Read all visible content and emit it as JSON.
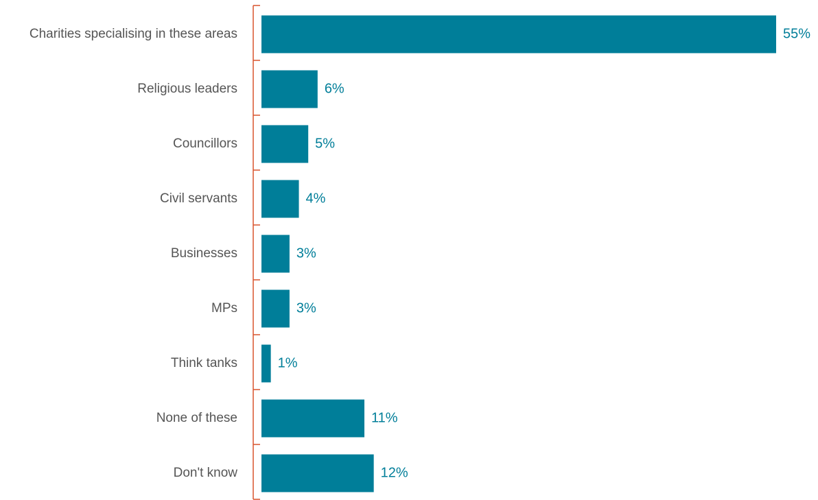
{
  "chart_data": {
    "type": "bar",
    "orientation": "horizontal",
    "categories": [
      "Charities specialising in these areas",
      "Religious leaders",
      "Councillors",
      "Civil servants",
      "Businesses",
      "MPs",
      "Think tanks",
      "None of these",
      "Don't know"
    ],
    "values": [
      55,
      6,
      5,
      4,
      3,
      3,
      1,
      11,
      12
    ],
    "value_labels": [
      "55%",
      "6%",
      "5%",
      "4%",
      "3%",
      "3%",
      "1%",
      "11%",
      "12%"
    ],
    "xlim": [
      0,
      55
    ],
    "grid": false,
    "legend": "none",
    "colors": {
      "bar": "#007e99",
      "value_label": "#007e99",
      "axis": "#d9532c",
      "category_label": "#555555"
    }
  }
}
